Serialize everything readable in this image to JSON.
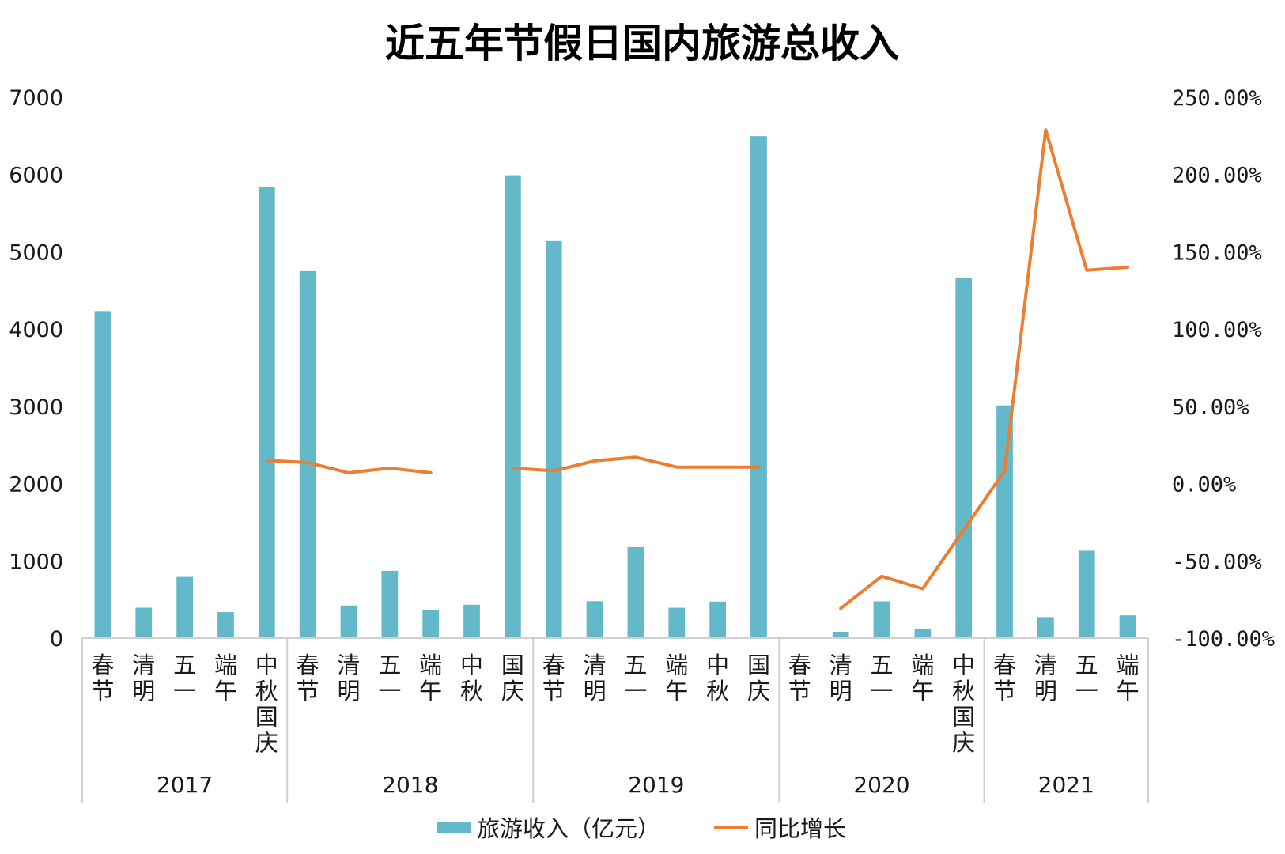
{
  "chart_data": {
    "type": "bar",
    "title": "近五年节假日国内旅游总收入",
    "groups": [
      {
        "year": "2017",
        "categories": [
          "春节",
          "清明",
          "五一",
          "端午",
          "中秋国庆"
        ]
      },
      {
        "year": "2018",
        "categories": [
          "春节",
          "清明",
          "五一",
          "端午",
          "中秋",
          "国庆"
        ]
      },
      {
        "year": "2019",
        "categories": [
          "春节",
          "清明",
          "五一",
          "端午",
          "中秋",
          "国庆"
        ]
      },
      {
        "year": "2020",
        "categories": [
          "春节",
          "清明",
          "五一",
          "端午",
          "中秋国庆"
        ]
      },
      {
        "year": "2021",
        "categories": [
          "春节",
          "清明",
          "五一",
          "端午"
        ]
      }
    ],
    "series": [
      {
        "name": "旅游收入（亿元）",
        "type": "bar",
        "axis": "left",
        "color": "#63b8c9",
        "values": [
          4233,
          394,
          792,
          337,
          5836,
          4750,
          422,
          871,
          362,
          432,
          5991,
          5139,
          478,
          1177,
          393,
          473,
          6497,
          null,
          82,
          476,
          123,
          4666,
          3012,
          272,
          1132,
          295
        ]
      },
      {
        "name": "同比增长",
        "type": "line",
        "axis": "right",
        "color": "#ed7d31",
        "values": [
          null,
          null,
          null,
          null,
          15,
          13.6,
          7,
          10,
          7,
          null,
          10,
          8.2,
          14.7,
          17,
          10.7,
          10.7,
          10.7,
          null,
          -80.7,
          -60,
          -68,
          -30,
          8.4,
          228.9,
          138.1,
          140
        ]
      }
    ],
    "y_left": {
      "min": 0,
      "max": 7000,
      "ticks": [
        "0",
        "1000",
        "2000",
        "3000",
        "4000",
        "5000",
        "6000",
        "7000"
      ]
    },
    "y_right": {
      "min": -100,
      "max": 250,
      "ticks": [
        "-100.00%",
        "-50.00%",
        "0.00%",
        "50.00%",
        "100.00%",
        "150.00%",
        "200.00%",
        "250.00%"
      ]
    },
    "legend_position": "bottom",
    "grid": false
  }
}
